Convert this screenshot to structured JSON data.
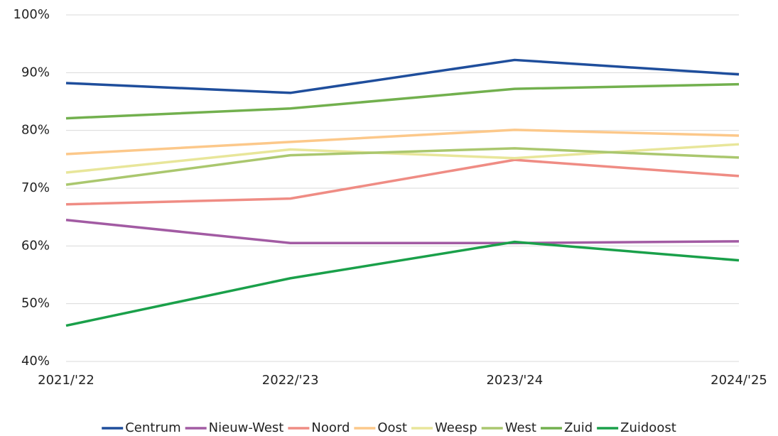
{
  "chart_data": {
    "type": "line",
    "categories": [
      "2021/'22",
      "2022/'23",
      "2023/'24",
      "2024/'25"
    ],
    "series": [
      {
        "name": "Centrum",
        "color": "#1f4e9c",
        "values": [
          88.2,
          86.5,
          92.2,
          89.7
        ]
      },
      {
        "name": "Nieuw-West",
        "color": "#a25ba3",
        "values": [
          64.5,
          60.5,
          60.5,
          60.8
        ]
      },
      {
        "name": "Noord",
        "color": "#ef8c84",
        "values": [
          67.2,
          68.2,
          74.9,
          72.1
        ]
      },
      {
        "name": "Oost",
        "color": "#fcc88a",
        "values": [
          75.9,
          78.0,
          80.1,
          79.1
        ]
      },
      {
        "name": "Weesp",
        "color": "#e8e69a",
        "values": [
          72.7,
          76.7,
          75.2,
          77.6
        ]
      },
      {
        "name": "West",
        "color": "#aac76e",
        "values": [
          70.6,
          75.7,
          76.9,
          75.3
        ]
      },
      {
        "name": "Zuid",
        "color": "#72b04e",
        "values": [
          82.1,
          83.8,
          87.2,
          88.0
        ]
      },
      {
        "name": "Zuidoost",
        "color": "#1aa04a",
        "values": [
          46.2,
          54.4,
          60.7,
          57.5
        ]
      }
    ],
    "ylim": [
      40,
      100
    ],
    "yticks": [
      {
        "value": 40,
        "label": "40%"
      },
      {
        "value": 50,
        "label": "50%"
      },
      {
        "value": 60,
        "label": "60%"
      },
      {
        "value": 70,
        "label": "70%"
      },
      {
        "value": 80,
        "label": "80%"
      },
      {
        "value": 90,
        "label": "90%"
      },
      {
        "value": 100,
        "label": "100%"
      }
    ],
    "grid": true,
    "legend": "bottom"
  }
}
